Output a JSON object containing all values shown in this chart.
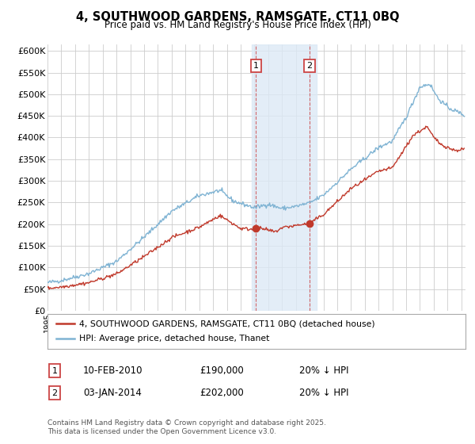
{
  "title": "4, SOUTHWOOD GARDENS, RAMSGATE, CT11 0BQ",
  "subtitle": "Price paid vs. HM Land Registry's House Price Index (HPI)",
  "ylabel_ticks": [
    "£0",
    "£50K",
    "£100K",
    "£150K",
    "£200K",
    "£250K",
    "£300K",
    "£350K",
    "£400K",
    "£450K",
    "£500K",
    "£550K",
    "£600K"
  ],
  "ytick_values": [
    0,
    50000,
    100000,
    150000,
    200000,
    250000,
    300000,
    350000,
    400000,
    450000,
    500000,
    550000,
    600000
  ],
  "ylim": [
    0,
    615000
  ],
  "xlim_start": 1995.0,
  "xlim_end": 2025.3,
  "marker1_date": 2010.1,
  "marker1_value": 190000,
  "marker2_date": 2014.0,
  "marker2_value": 202000,
  "shade_x1": 2009.8,
  "shade_x2": 2014.5,
  "legend_entry1": "4, SOUTHWOOD GARDENS, RAMSGATE, CT11 0BQ (detached house)",
  "legend_entry2": "HPI: Average price, detached house, Thanet",
  "annotation1_label": "1",
  "annotation1_date": "10-FEB-2010",
  "annotation1_price": "£190,000",
  "annotation1_hpi": "20% ↓ HPI",
  "annotation2_label": "2",
  "annotation2_date": "03-JAN-2014",
  "annotation2_price": "£202,000",
  "annotation2_hpi": "20% ↓ HPI",
  "footer": "Contains HM Land Registry data © Crown copyright and database right 2025.\nThis data is licensed under the Open Government Licence v3.0.",
  "line_color_red": "#c0392b",
  "line_color_blue": "#7fb3d3",
  "bg_color": "#ffffff",
  "grid_color": "#cccccc",
  "shade_color": "#dce9f5"
}
